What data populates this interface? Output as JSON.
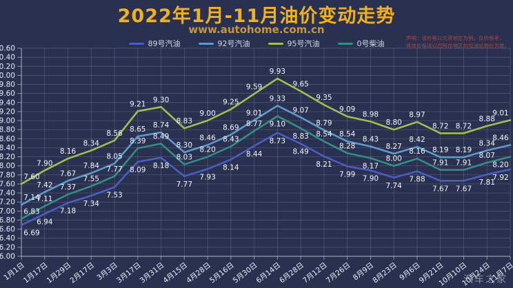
{
  "header": {
    "title": "2022年1月-11月油价变动走势",
    "subtitle": "www.autohome.com.cn",
    "disclaimer_line1": "声明：该价格以北京地区为例，仅供参考，",
    "disclaimer_line2": "具体价格请以您所在地区的加油站报价为准。"
  },
  "watermark": "汽车之家",
  "colors": {
    "background": "#2a3150",
    "title": "#f2b117",
    "subtitle": "#c6973a",
    "disclaimer": "#9f4a45",
    "grid": "rgba(255,255,255,0.20)",
    "axis": "rgba(255,255,255,0.45)",
    "tick_label": "#e9ecf5",
    "point_label": "#f2f4fa",
    "series_89": "#4a5ec2",
    "series_92": "#5c9bcc",
    "series_95": "#a3bf4b",
    "series_diesel": "#338e86"
  },
  "chart_data": {
    "type": "line",
    "title": "2022年1月-11月油价变动走势",
    "xlabel": "",
    "ylabel": "",
    "ylim": [
      6.0,
      10.6
    ],
    "ytick_step": 0.2,
    "grid": true,
    "legend_position": "top",
    "categories": [
      "1月1日",
      "1月17日",
      "1月29日",
      "2月17日",
      "3月3日",
      "3月17日",
      "3月31日",
      "4月15日",
      "4月28日",
      "5月16日",
      "5月30日",
      "6月14日",
      "6月28日",
      "7月12日",
      "7月26日",
      "8月9日",
      "8月23日",
      "9月6日",
      "9月21日",
      "10月10日",
      "10月24日",
      "11月7日"
    ],
    "series": [
      {
        "name": "89号汽油",
        "color": "#4a5ec2",
        "label_position": "below",
        "values": [
          6.69,
          6.94,
          7.18,
          7.34,
          7.53,
          8.09,
          8.18,
          7.77,
          7.93,
          8.14,
          8.44,
          8.73,
          8.49,
          8.21,
          7.99,
          7.9,
          7.74,
          7.88,
          7.67,
          7.67,
          7.81,
          7.92
        ]
      },
      {
        "name": "92号汽油",
        "color": "#5c9bcc",
        "label_position": "above",
        "values": [
          7.14,
          7.42,
          7.67,
          7.84,
          8.05,
          8.65,
          8.74,
          8.3,
          8.46,
          8.69,
          9.01,
          9.33,
          9.07,
          8.79,
          8.54,
          8.43,
          8.27,
          8.42,
          8.19,
          8.19,
          8.34,
          8.46
        ]
      },
      {
        "name": "95号汽油",
        "color": "#a3bf4b",
        "label_position": "above",
        "values": [
          7.6,
          7.9,
          8.16,
          8.34,
          8.56,
          9.21,
          9.3,
          8.83,
          9.0,
          9.25,
          9.59,
          9.93,
          9.65,
          9.35,
          9.09,
          8.98,
          8.8,
          8.97,
          8.72,
          8.72,
          8.88,
          9.01
        ]
      },
      {
        "name": "0号柴油",
        "color": "#338e86",
        "label_position": "above",
        "values": [
          6.83,
          7.11,
          7.37,
          7.55,
          7.77,
          8.39,
          8.49,
          8.03,
          8.2,
          8.43,
          8.77,
          9.1,
          8.83,
          8.54,
          8.28,
          8.17,
          8.0,
          8.16,
          7.91,
          7.91,
          8.07,
          8.2
        ]
      }
    ]
  }
}
